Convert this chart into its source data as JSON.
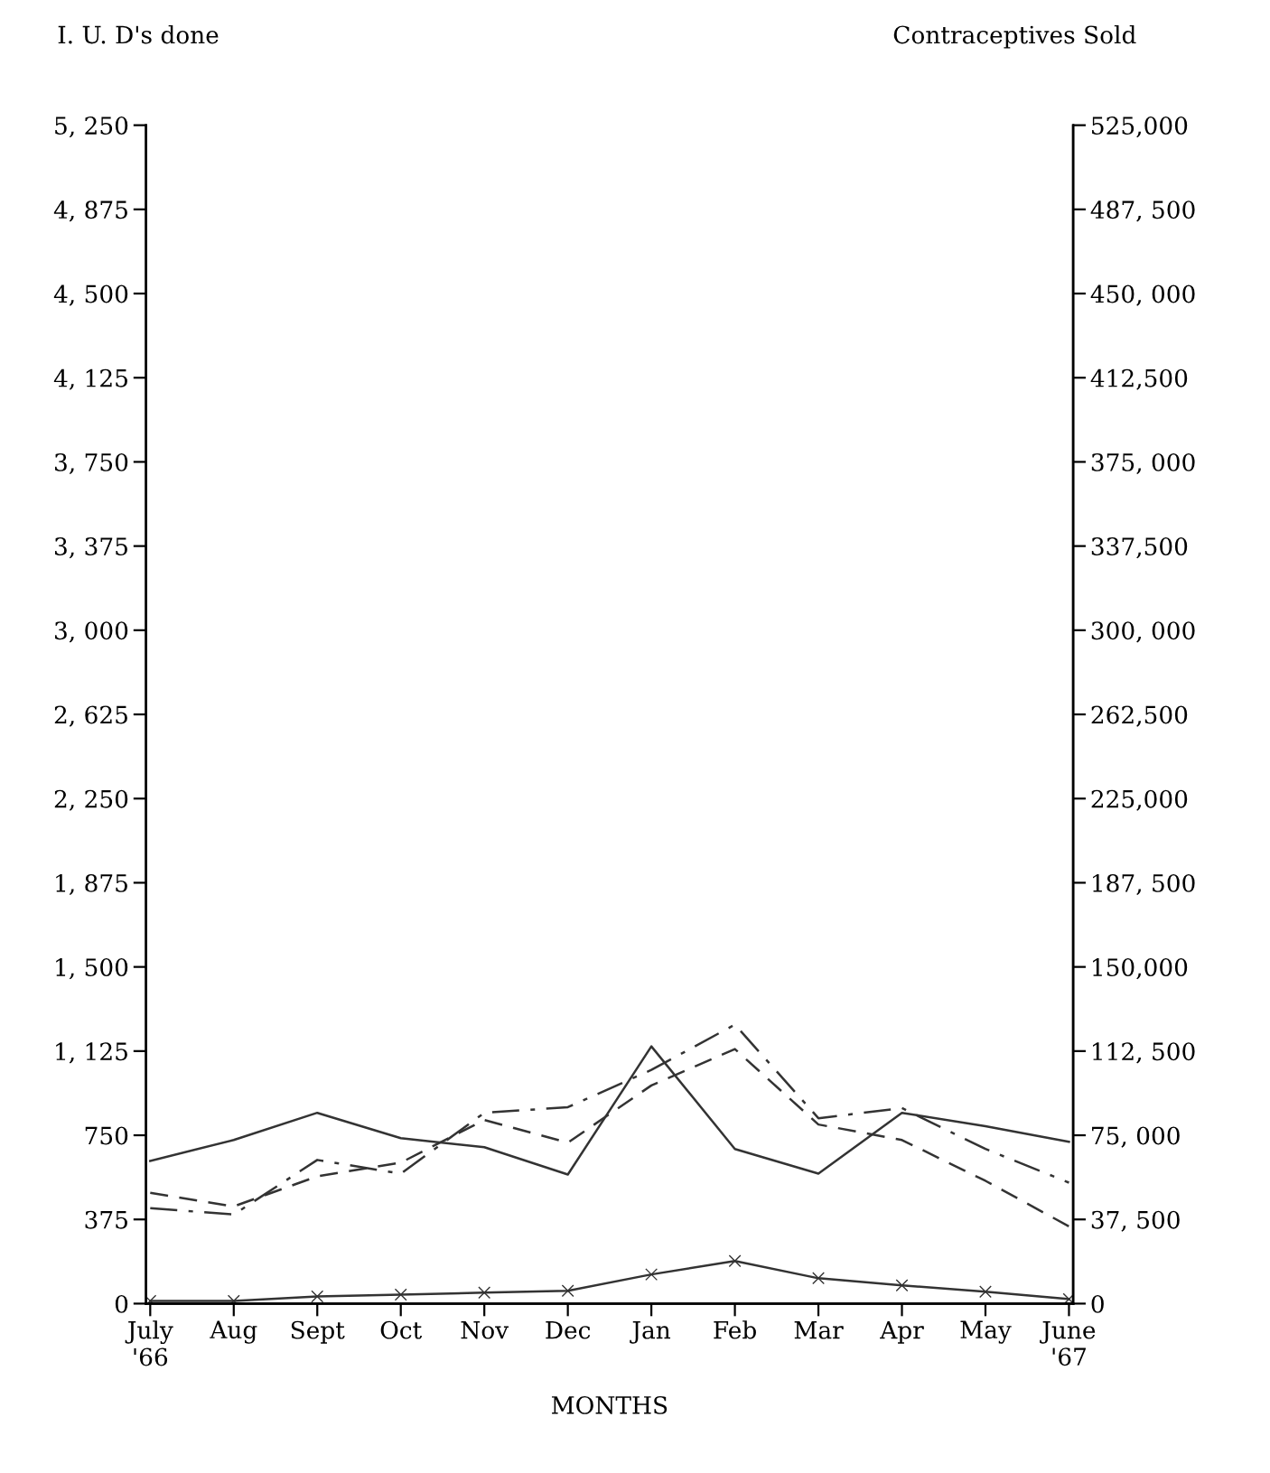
{
  "chart_data": {
    "type": "line",
    "ylabel": "I. U. D's done",
    "y2label": "Contraceptives Sold",
    "xlabel": "MONTHS",
    "categories": [
      "July\n'66",
      "Aug",
      "Sept",
      "Oct",
      "Nov",
      "Dec",
      "Jan",
      "Feb",
      "Mar",
      "Apr",
      "May",
      "June\n'67"
    ],
    "series": [
      {
        "color": "#333333",
        "line_style": "solid",
        "marker": "none",
        "values": [
          636,
          729,
          850,
          737,
          697,
          575,
          1146,
          689,
          579,
          850,
          790,
          721
        ]
      },
      {
        "color": "#333333",
        "line_style": "dashed",
        "marker": "none",
        "values": [
          494,
          433,
          567,
          628,
          818,
          717,
          972,
          1134,
          798,
          729,
          547,
          344
        ]
      },
      {
        "color": "#333333",
        "line_style": "dashdot",
        "marker": "none",
        "values": [
          425,
          397,
          640,
          579,
          850,
          875,
          1041,
          1243,
          826,
          871,
          689,
          539
        ]
      },
      {
        "color": "#333333",
        "line_style": "solid",
        "marker": "cross",
        "values": [
          12,
          12,
          32,
          40,
          49,
          57,
          130,
          190,
          113,
          81,
          53,
          20
        ]
      }
    ],
    "ylim": [
      0,
      5250
    ],
    "yticks": [
      {
        "value": 0,
        "label": "0"
      },
      {
        "value": 375,
        "label": "375"
      },
      {
        "value": 750,
        "label": "750"
      },
      {
        "value": 1125,
        "label": "1, 125"
      },
      {
        "value": 1500,
        "label": "1, 500"
      },
      {
        "value": 1875,
        "label": "1, 875"
      },
      {
        "value": 2250,
        "label": "2, 250"
      },
      {
        "value": 2625,
        "label": "2, 625"
      },
      {
        "value": 3000,
        "label": "3, 000"
      },
      {
        "value": 3375,
        "label": "3, 375"
      },
      {
        "value": 3750,
        "label": "3, 750"
      },
      {
        "value": 4125,
        "label": "4, 125"
      },
      {
        "value": 4500,
        "label": "4, 500"
      },
      {
        "value": 4875,
        "label": "4, 875"
      },
      {
        "value": 5250,
        "label": "5, 250"
      }
    ],
    "y2lim": [
      0,
      525000
    ],
    "y2ticks": [
      {
        "value": 0,
        "label": "0"
      },
      {
        "value": 37500,
        "label": "37, 500"
      },
      {
        "value": 75000,
        "label": "75, 000"
      },
      {
        "value": 112500,
        "label": "112, 500"
      },
      {
        "value": 150000,
        "label": "150,000"
      },
      {
        "value": 187500,
        "label": "187, 500"
      },
      {
        "value": 225000,
        "label": "225,000"
      },
      {
        "value": 262500,
        "label": "262,500"
      },
      {
        "value": 300000,
        "label": "300, 000"
      },
      {
        "value": 337500,
        "label": "337,500"
      },
      {
        "value": 375000,
        "label": "375, 000"
      },
      {
        "value": 412500,
        "label": "412,500"
      },
      {
        "value": 450000,
        "label": "450, 000"
      },
      {
        "value": 487500,
        "label": "487, 500"
      },
      {
        "value": 525000,
        "label": "525,000"
      }
    ],
    "grid": false
  }
}
